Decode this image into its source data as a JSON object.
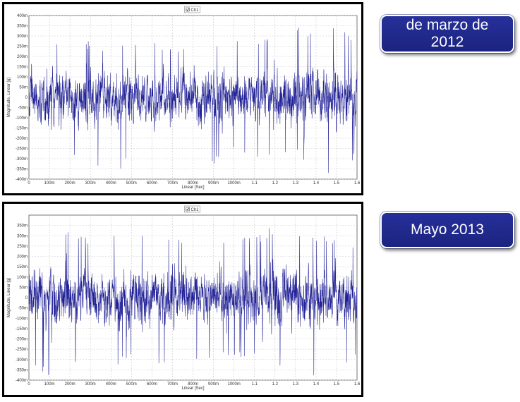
{
  "colors": {
    "trace": "#0a0a8c",
    "grid": "#c8c8c8",
    "tag_bg": "#222a8e"
  },
  "tags": [
    {
      "label": "de marzo de 2012"
    },
    {
      "label": "Mayo 2013"
    }
  ],
  "chart_data": [
    {
      "type": "line",
      "legend": [
        "Ch1"
      ],
      "xlabel": "Linear [Sec]",
      "ylabel": "Magnitude, Linear [g]",
      "xlim": [
        0,
        1.6
      ],
      "ylim": [
        -0.4,
        0.4
      ],
      "xticks": [
        {
          "v": 0,
          "label": "0"
        },
        {
          "v": 0.1,
          "label": "100m"
        },
        {
          "v": 0.2,
          "label": "200m"
        },
        {
          "v": 0.3,
          "label": "300m"
        },
        {
          "v": 0.4,
          "label": "400m"
        },
        {
          "v": 0.5,
          "label": "500m"
        },
        {
          "v": 0.6,
          "label": "600m"
        },
        {
          "v": 0.7,
          "label": "700m"
        },
        {
          "v": 0.8,
          "label": "800m"
        },
        {
          "v": 0.9,
          "label": "900m"
        },
        {
          "v": 1.0,
          "label": "1000m"
        },
        {
          "v": 1.1,
          "label": "1.1"
        },
        {
          "v": 1.2,
          "label": "1.2"
        },
        {
          "v": 1.3,
          "label": "1.3"
        },
        {
          "v": 1.4,
          "label": "1.4"
        },
        {
          "v": 1.5,
          "label": "1.5"
        },
        {
          "v": 1.6,
          "label": "1.6"
        }
      ],
      "yticks": [
        {
          "v": 0.4,
          "label": "400m"
        },
        {
          "v": 0.35,
          "label": "350m"
        },
        {
          "v": 0.3,
          "label": "300m"
        },
        {
          "v": 0.25,
          "label": "250m"
        },
        {
          "v": 0.2,
          "label": "200m"
        },
        {
          "v": 0.15,
          "label": "150m"
        },
        {
          "v": 0.1,
          "label": "100m"
        },
        {
          "v": 0.05,
          "label": "50m"
        },
        {
          "v": 0,
          "label": "0"
        },
        {
          "v": -0.05,
          "label": "-50m"
        },
        {
          "v": -0.1,
          "label": "-100m"
        },
        {
          "v": -0.15,
          "label": "-150m"
        },
        {
          "v": -0.2,
          "label": "-200m"
        },
        {
          "v": -0.25,
          "label": "-250m"
        },
        {
          "v": -0.3,
          "label": "-300m"
        },
        {
          "v": -0.35,
          "label": "-350m"
        },
        {
          "v": -0.4,
          "label": "-400m"
        }
      ],
      "grid": true,
      "series": [
        {
          "name": "Ch1",
          "x": [
            0,
            0.1,
            0.2,
            0.3,
            0.4,
            0.5,
            0.6,
            0.7,
            0.8,
            0.9,
            1.0,
            1.1,
            1.2,
            1.3,
            1.4,
            1.5,
            1.6
          ],
          "envelope_max": [
            0.27,
            0.32,
            0.26,
            0.28,
            0.24,
            0.3,
            0.27,
            0.25,
            0.29,
            0.27,
            0.33,
            0.28,
            0.31,
            0.35,
            0.3,
            0.37,
            0.28
          ],
          "envelope_min": [
            -0.26,
            -0.3,
            -0.28,
            -0.3,
            -0.41,
            -0.31,
            -0.3,
            -0.29,
            -0.3,
            -0.33,
            -0.28,
            -0.3,
            -0.33,
            -0.28,
            -0.39,
            -0.36,
            -0.3
          ]
        }
      ]
    },
    {
      "type": "line",
      "legend": [
        "Ch1"
      ],
      "xlabel": "Linear [Sec]",
      "ylabel": "Magnitude, Linear [g]",
      "xlim": [
        0,
        1.6
      ],
      "ylim": [
        -0.4,
        0.4
      ],
      "xticks": [
        {
          "v": 0,
          "label": "0"
        },
        {
          "v": 0.1,
          "label": "100m"
        },
        {
          "v": 0.2,
          "label": "200m"
        },
        {
          "v": 0.3,
          "label": "300m"
        },
        {
          "v": 0.4,
          "label": "400m"
        },
        {
          "v": 0.5,
          "label": "500m"
        },
        {
          "v": 0.6,
          "label": "600m"
        },
        {
          "v": 0.7,
          "label": "700m"
        },
        {
          "v": 0.8,
          "label": "800m"
        },
        {
          "v": 0.9,
          "label": "900m"
        },
        {
          "v": 1.0,
          "label": "1000m"
        },
        {
          "v": 1.1,
          "label": "1.1"
        },
        {
          "v": 1.2,
          "label": "1.2"
        },
        {
          "v": 1.3,
          "label": "1.3"
        },
        {
          "v": 1.4,
          "label": "1.4"
        },
        {
          "v": 1.5,
          "label": "1.5"
        },
        {
          "v": 1.6,
          "label": "1.6"
        }
      ],
      "yticks": [
        {
          "v": 0.35,
          "label": "350m"
        },
        {
          "v": 0.3,
          "label": "300m"
        },
        {
          "v": 0.25,
          "label": "250m"
        },
        {
          "v": 0.2,
          "label": "200m"
        },
        {
          "v": 0.15,
          "label": "150m"
        },
        {
          "v": 0.1,
          "label": "100m"
        },
        {
          "v": 0.05,
          "label": "50m"
        },
        {
          "v": 0,
          "label": "0"
        },
        {
          "v": -0.05,
          "label": "-50m"
        },
        {
          "v": -0.1,
          "label": "-100m"
        },
        {
          "v": -0.15,
          "label": "-150m"
        },
        {
          "v": -0.2,
          "label": "-200m"
        },
        {
          "v": -0.25,
          "label": "-250m"
        },
        {
          "v": -0.3,
          "label": "-300m"
        },
        {
          "v": -0.35,
          "label": "-350m"
        },
        {
          "v": -0.4,
          "label": "-400m"
        }
      ],
      "grid": true,
      "series": [
        {
          "name": "Ch1",
          "x": [
            0,
            0.1,
            0.2,
            0.3,
            0.4,
            0.5,
            0.6,
            0.7,
            0.8,
            0.9,
            1.0,
            1.1,
            1.2,
            1.3,
            1.4,
            1.5,
            1.6
          ],
          "envelope_max": [
            0.26,
            0.3,
            0.33,
            0.28,
            0.3,
            0.33,
            0.3,
            0.32,
            0.3,
            0.28,
            0.31,
            0.29,
            0.37,
            0.33,
            0.3,
            0.31,
            0.26
          ],
          "envelope_min": [
            -0.35,
            -0.39,
            -0.37,
            -0.3,
            -0.33,
            -0.31,
            -0.3,
            -0.37,
            -0.3,
            -0.33,
            -0.29,
            -0.3,
            -0.37,
            -0.31,
            -0.41,
            -0.35,
            -0.3
          ]
        }
      ]
    }
  ]
}
